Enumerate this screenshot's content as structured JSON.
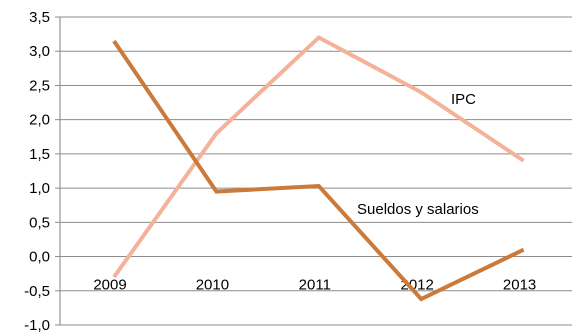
{
  "chart_data": {
    "type": "line",
    "categories": [
      "2009",
      "2010",
      "2011",
      "2012",
      "2013"
    ],
    "y_ticks": [
      "3,5",
      "3,0",
      "2,5",
      "2,0",
      "1,5",
      "1,0",
      "0,5",
      "0,0",
      "-0,5",
      "-1,0"
    ],
    "ylim": [
      -1.0,
      3.5
    ],
    "grid": true,
    "series": [
      {
        "name": "IPC",
        "color": "#f4b29a",
        "values": [
          -0.3,
          1.8,
          3.2,
          2.4,
          1.4
        ]
      },
      {
        "name": "Sueldos y salarios",
        "color": "#cc7a3a",
        "values": [
          3.15,
          0.95,
          1.03,
          -0.62,
          0.1
        ]
      }
    ]
  }
}
